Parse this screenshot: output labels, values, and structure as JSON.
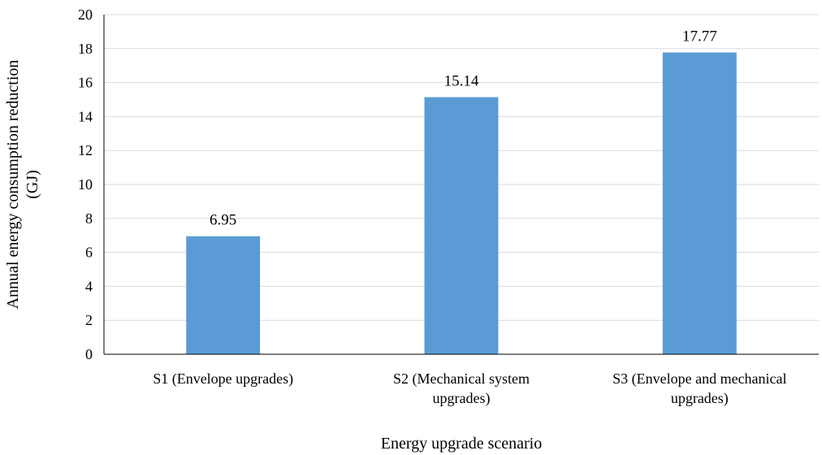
{
  "chart_data": {
    "type": "bar",
    "categories": [
      [
        "S1 (Envelope upgrades)"
      ],
      [
        "S2 (Mechanical system",
        "upgrades)"
      ],
      [
        "S3 (Envelope and mechanical",
        "upgrades)"
      ]
    ],
    "values": [
      6.95,
      15.14,
      17.77
    ],
    "data_labels": [
      "6.95",
      "15.14",
      "17.77"
    ],
    "title": "",
    "xlabel": "Energy upgrade scenario",
    "ylabel": [
      "Annual energy consumption reduction",
      "(GJ)"
    ],
    "ylim": [
      0,
      20
    ],
    "yticks": [
      0,
      2,
      4,
      6,
      8,
      10,
      12,
      14,
      16,
      18,
      20
    ],
    "grid": true,
    "legend": "none",
    "bar_color": "#5b9bd5",
    "grid_color": "#d9d9d9",
    "axis_color": "#000000"
  }
}
